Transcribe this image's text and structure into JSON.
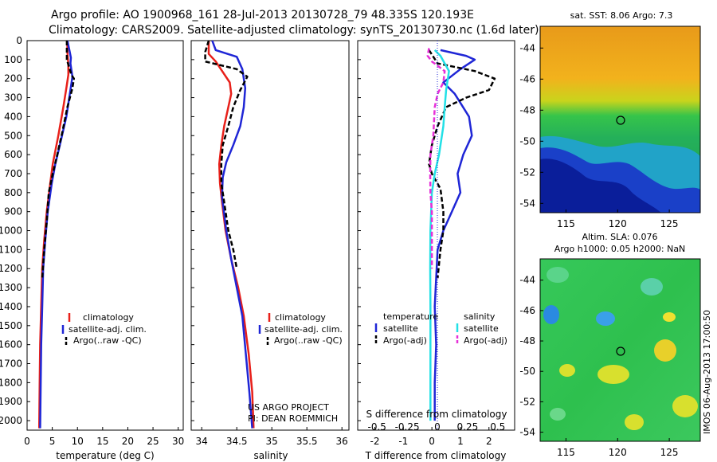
{
  "title_line1": "Argo profile: AO 1900968_161 28-Jul-2013 20130728_79 48.335S 120.193E",
  "title_line2": "Climatology: CARS2009. Satellite-adjusted climatology: synTS_20130730.nc (1.6d later)",
  "colors": {
    "climatology": "#e8201a",
    "satellite": "#1f26d6",
    "argo": "#000000",
    "satellite_s": "#22e0e6",
    "argo_s": "#e62fd8",
    "dotted": "#1f26d6"
  },
  "depth_ticks": [
    "0",
    "100",
    "200",
    "300",
    "400",
    "500",
    "600",
    "700",
    "800",
    "900",
    "1000",
    "1100",
    "1200",
    "1300",
    "1400",
    "1500",
    "1600",
    "1700",
    "1800",
    "1900",
    "2000"
  ],
  "credit_1": "US ARGO PROJECT",
  "credit_2": "PI: DEAN ROEMMICH",
  "legend_t": [
    "climatology",
    "satellite-adj. clim.",
    "Argo(..raw -QC)"
  ],
  "legend_s": [
    "climatology",
    "satellite-adj. clim.",
    "Argo(..raw -QC)"
  ],
  "legend_diff": {
    "temp_header": "temperature",
    "sal_header": "salinity",
    "temp_sat": "satellite",
    "temp_argo": "Argo(-adj)",
    "sal_sat": "satellite",
    "sal_argo": "Argo(-adj)"
  },
  "diff_s_label": "S difference from climatology",
  "diff_s_ticks": [
    "-0.5",
    "-0.25",
    "0",
    "0.25",
    "0.5"
  ],
  "map1_title": "sat. SST: 8.06 Argo: 7.3",
  "map2_title1": "Altim. SLA: 0.076",
  "map2_title2": "Argo h1000: 0.05 h2000: NaN",
  "map_y_ticks": [
    "-44",
    "-46",
    "-48",
    "-50",
    "-52",
    "-54"
  ],
  "map_x_ticks": [
    "115",
    "120",
    "125"
  ],
  "side_stamp": "IMOS 06-Aug-2013 17:00:50",
  "chart_data": [
    {
      "type": "line",
      "xlabel": "temperature (deg C)",
      "ylabel": "",
      "xlim": [
        0,
        31
      ],
      "ylim": [
        2050,
        0
      ],
      "x_ticks": [
        "0",
        "5",
        "10",
        "15",
        "20",
        "25",
        "30"
      ],
      "series": [
        {
          "name": "climatology",
          "color": "#e8201a",
          "points": [
            [
              8.0,
              0
            ],
            [
              8.0,
              60
            ],
            [
              8.2,
              130
            ],
            [
              8.2,
              180
            ],
            [
              7.8,
              250
            ],
            [
              7.2,
              350
            ],
            [
              6.2,
              500
            ],
            [
              5.1,
              650
            ],
            [
              4.6,
              750
            ],
            [
              3.9,
              900
            ],
            [
              3.4,
              1050
            ],
            [
              3.0,
              1200
            ],
            [
              2.8,
              1400
            ],
            [
              2.6,
              1600
            ],
            [
              2.5,
              1800
            ],
            [
              2.4,
              2040
            ]
          ]
        },
        {
          "name": "satellite-adj. clim.",
          "color": "#1f26d6",
          "points": [
            [
              8.0,
              0
            ],
            [
              8.4,
              50
            ],
            [
              8.7,
              90
            ],
            [
              8.6,
              120
            ],
            [
              9.0,
              190
            ],
            [
              8.6,
              260
            ],
            [
              7.8,
              400
            ],
            [
              6.5,
              550
            ],
            [
              5.6,
              650
            ],
            [
              4.9,
              750
            ],
            [
              4.1,
              900
            ],
            [
              3.6,
              1050
            ],
            [
              3.2,
              1200
            ],
            [
              3.0,
              1400
            ],
            [
              2.8,
              1600
            ],
            [
              2.7,
              1800
            ],
            [
              2.6,
              2040
            ]
          ]
        },
        {
          "name": "Argo(..raw -QC)",
          "color": "#000000",
          "dash": true,
          "points": [
            [
              7.9,
              0
            ],
            [
              7.9,
              100
            ],
            [
              8.8,
              180
            ],
            [
              9.3,
              200
            ],
            [
              9.0,
              250
            ],
            [
              8.0,
              350
            ],
            [
              7.0,
              480
            ],
            [
              6.0,
              600
            ],
            [
              5.1,
              700
            ],
            [
              4.3,
              800
            ],
            [
              3.9,
              950
            ],
            [
              3.4,
              1100
            ],
            [
              3.0,
              1250
            ]
          ]
        }
      ]
    },
    {
      "type": "line",
      "xlabel": "salinity",
      "ylabel": "",
      "xlim": [
        33.85,
        36.1
      ],
      "ylim": [
        2050,
        0
      ],
      "x_ticks": [
        "34",
        "34.5",
        "35",
        "35.5",
        "36"
      ],
      "series": [
        {
          "name": "climatology",
          "color": "#e8201a",
          "points": [
            [
              34.1,
              0
            ],
            [
              34.1,
              70
            ],
            [
              34.2,
              110
            ],
            [
              34.4,
              220
            ],
            [
              34.42,
              280
            ],
            [
              34.38,
              350
            ],
            [
              34.32,
              450
            ],
            [
              34.28,
              550
            ],
            [
              34.25,
              650
            ],
            [
              34.26,
              750
            ],
            [
              34.29,
              850
            ],
            [
              34.34,
              1000
            ],
            [
              34.42,
              1150
            ],
            [
              34.52,
              1300
            ],
            [
              34.6,
              1450
            ],
            [
              34.67,
              1650
            ],
            [
              34.72,
              1850
            ],
            [
              34.74,
              2040
            ]
          ]
        },
        {
          "name": "satellite-adj. clim.",
          "color": "#1f26d6",
          "points": [
            [
              34.15,
              0
            ],
            [
              34.2,
              50
            ],
            [
              34.5,
              85
            ],
            [
              34.58,
              150
            ],
            [
              34.62,
              250
            ],
            [
              34.6,
              350
            ],
            [
              34.55,
              450
            ],
            [
              34.45,
              550
            ],
            [
              34.35,
              640
            ],
            [
              34.3,
              720
            ],
            [
              34.29,
              820
            ],
            [
              34.35,
              1000
            ],
            [
              34.42,
              1150
            ],
            [
              34.5,
              1300
            ],
            [
              34.58,
              1450
            ],
            [
              34.63,
              1650
            ],
            [
              34.68,
              1850
            ],
            [
              34.72,
              2040
            ]
          ]
        },
        {
          "name": "Argo(..raw -QC)",
          "color": "#000000",
          "dash": true,
          "points": [
            [
              34.1,
              0
            ],
            [
              34.05,
              60
            ],
            [
              34.05,
              110
            ],
            [
              34.5,
              150
            ],
            [
              34.65,
              190
            ],
            [
              34.55,
              260
            ],
            [
              34.45,
              350
            ],
            [
              34.38,
              450
            ],
            [
              34.3,
              550
            ],
            [
              34.28,
              650
            ],
            [
              34.28,
              750
            ],
            [
              34.32,
              850
            ],
            [
              34.38,
              1000
            ],
            [
              34.45,
              1100
            ],
            [
              34.5,
              1200
            ]
          ]
        }
      ]
    },
    {
      "type": "line",
      "xlabel": "T difference from climatology",
      "ylabel": "",
      "xlim": [
        -2.6,
        2.9
      ],
      "ylim": [
        2050,
        0
      ],
      "x_ticks": [
        "-2",
        "-1",
        "0",
        "1",
        "2"
      ],
      "series": [
        {
          "name": "temperature satellite",
          "color": "#1f26d6",
          "points": [
            [
              0.3,
              50
            ],
            [
              1.2,
              80
            ],
            [
              1.5,
              100
            ],
            [
              1.0,
              150
            ],
            [
              0.4,
              220
            ],
            [
              0.8,
              280
            ],
            [
              1.3,
              400
            ],
            [
              1.4,
              500
            ],
            [
              1.1,
              600
            ],
            [
              0.9,
              700
            ],
            [
              1.0,
              800
            ],
            [
              0.7,
              900
            ],
            [
              0.4,
              1000
            ],
            [
              0.2,
              1100
            ],
            [
              0.15,
              1250
            ],
            [
              0.1,
              1400
            ],
            [
              0.15,
              1600
            ],
            [
              0.1,
              1800
            ],
            [
              0.1,
              2000
            ]
          ]
        },
        {
          "name": "temperature Argo(-adj)",
          "color": "#000000",
          "dash": true,
          "points": [
            [
              -0.1,
              50
            ],
            [
              0.2,
              120
            ],
            [
              1.5,
              160
            ],
            [
              2.2,
              200
            ],
            [
              2.0,
              260
            ],
            [
              1.2,
              300
            ],
            [
              0.5,
              350
            ],
            [
              0.2,
              450
            ],
            [
              0.0,
              550
            ],
            [
              -0.1,
              650
            ],
            [
              0.0,
              700
            ],
            [
              0.3,
              780
            ],
            [
              0.4,
              900
            ],
            [
              0.4,
              1000
            ],
            [
              0.3,
              1100
            ],
            [
              0.2,
              1250
            ]
          ]
        },
        {
          "name": "salinity satellite",
          "color": "#22e0e6",
          "points": [
            [
              0.1,
              50
            ],
            [
              0.3,
              80
            ],
            [
              0.45,
              120
            ],
            [
              0.6,
              160
            ],
            [
              0.5,
              260
            ],
            [
              0.45,
              350
            ],
            [
              0.4,
              450
            ],
            [
              0.25,
              600
            ],
            [
              0.1,
              700
            ],
            [
              0.0,
              800
            ],
            [
              -0.05,
              1000
            ],
            [
              -0.06,
              1200
            ],
            [
              -0.05,
              1400
            ],
            [
              -0.05,
              1600
            ],
            [
              -0.05,
              1800
            ],
            [
              -0.05,
              2000
            ]
          ]
        },
        {
          "name": "salinity Argo(-adj)",
          "color": "#e62fd8",
          "dash": true,
          "points": [
            [
              -0.1,
              40
            ],
            [
              -0.15,
              80
            ],
            [
              0.0,
              110
            ],
            [
              0.45,
              160
            ],
            [
              0.4,
              220
            ],
            [
              0.2,
              280
            ],
            [
              0.1,
              350
            ],
            [
              0.05,
              500
            ],
            [
              -0.05,
              600
            ],
            [
              -0.06,
              700
            ],
            [
              -0.05,
              800
            ],
            [
              0.0,
              900
            ],
            [
              0.0,
              1000
            ],
            [
              0.0,
              1100
            ],
            [
              0.0,
              1200
            ]
          ]
        }
      ]
    }
  ]
}
